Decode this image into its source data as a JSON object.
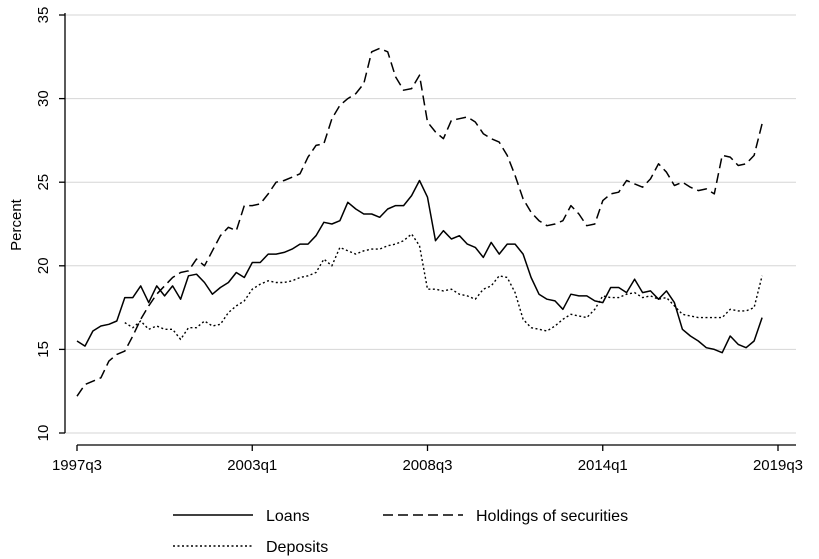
{
  "chart_data": {
    "type": "line",
    "title": "",
    "xlabel": "",
    "ylabel": "Percent",
    "xlim": [
      "1997q3",
      "2019q3"
    ],
    "ylim": [
      10,
      35
    ],
    "x_ticks": [
      "1997q3",
      "2003q1",
      "2008q3",
      "2014q1",
      "2019q3"
    ],
    "y_ticks": [
      10,
      15,
      20,
      25,
      30,
      35
    ],
    "grid": "horizontal",
    "legend_position": "bottom",
    "x": [
      "1997q3",
      "1997q4",
      "1998q1",
      "1998q2",
      "1998q3",
      "1998q4",
      "1999q1",
      "1999q2",
      "1999q3",
      "1999q4",
      "2000q1",
      "2000q2",
      "2000q3",
      "2000q4",
      "2001q1",
      "2001q2",
      "2001q3",
      "2001q4",
      "2002q1",
      "2002q2",
      "2002q3",
      "2002q4",
      "2003q1",
      "2003q2",
      "2003q3",
      "2003q4",
      "2004q1",
      "2004q2",
      "2004q3",
      "2004q4",
      "2005q1",
      "2005q2",
      "2005q3",
      "2005q4",
      "2006q1",
      "2006q2",
      "2006q3",
      "2006q4",
      "2007q1",
      "2007q2",
      "2007q3",
      "2007q4",
      "2008q1",
      "2008q2",
      "2008q3",
      "2008q4",
      "2009q1",
      "2009q2",
      "2009q3",
      "2009q4",
      "2010q1",
      "2010q2",
      "2010q3",
      "2010q4",
      "2011q1",
      "2011q2",
      "2011q3",
      "2011q4",
      "2012q1",
      "2012q2",
      "2012q3",
      "2012q4",
      "2013q1",
      "2013q2",
      "2013q3",
      "2013q4",
      "2014q1",
      "2014q2",
      "2014q3",
      "2014q4",
      "2015q1",
      "2015q2",
      "2015q3",
      "2015q4",
      "2016q1",
      "2016q2",
      "2016q3",
      "2016q4",
      "2017q1",
      "2017q2",
      "2017q3",
      "2017q4",
      "2018q1",
      "2018q2",
      "2018q3",
      "2018q4",
      "2019q1"
    ],
    "series": [
      {
        "name": "Loans",
        "style": "solid",
        "values": [
          15.5,
          15.2,
          16.1,
          16.4,
          16.5,
          16.7,
          18.1,
          18.1,
          18.8,
          17.8,
          18.8,
          18.2,
          18.8,
          18.0,
          19.4,
          19.5,
          19.0,
          18.3,
          18.7,
          19.0,
          19.6,
          19.3,
          20.2,
          20.2,
          20.7,
          20.7,
          20.8,
          21.0,
          21.3,
          21.3,
          21.8,
          22.6,
          22.5,
          22.7,
          23.8,
          23.4,
          23.1,
          23.1,
          22.9,
          23.4,
          23.6,
          23.6,
          24.2,
          25.1,
          24.1,
          21.5,
          22.1,
          21.6,
          21.8,
          21.3,
          21.1,
          20.5,
          21.4,
          20.7,
          21.3,
          21.3,
          20.7,
          19.3,
          18.3,
          18.0,
          17.9,
          17.4,
          18.3,
          18.2,
          18.2,
          17.9,
          17.8,
          18.7,
          18.7,
          18.4,
          19.2,
          18.4,
          18.5,
          18.0,
          18.5,
          17.8,
          16.2,
          15.8,
          15.5,
          15.1,
          15.0,
          14.8,
          15.8,
          15.3,
          15.1,
          15.5,
          16.9
        ]
      },
      {
        "name": "Holdings of securities",
        "style": "dashed",
        "values": [
          12.2,
          12.9,
          13.1,
          13.3,
          14.3,
          14.7,
          14.9,
          15.8,
          16.8,
          17.6,
          18.3,
          18.8,
          19.3,
          19.6,
          19.7,
          20.4,
          20.0,
          20.9,
          21.8,
          22.3,
          22.1,
          23.6,
          23.6,
          23.7,
          24.3,
          25.0,
          25.1,
          25.3,
          25.5,
          26.5,
          27.2,
          27.3,
          28.8,
          29.6,
          30.0,
          30.3,
          30.9,
          32.8,
          33.0,
          32.8,
          31.3,
          30.5,
          30.6,
          31.4,
          28.6,
          28.0,
          27.6,
          28.7,
          28.8,
          28.9,
          28.6,
          27.9,
          27.6,
          27.4,
          26.6,
          25.4,
          24.0,
          23.2,
          22.7,
          22.4,
          22.5,
          22.7,
          23.6,
          23.1,
          22.4,
          22.5,
          23.9,
          24.3,
          24.4,
          25.1,
          24.9,
          24.7,
          25.2,
          26.1,
          25.6,
          24.8,
          25.0,
          24.7,
          24.5,
          24.6,
          24.3,
          26.6,
          26.5,
          26.0,
          26.1,
          26.6,
          28.5
        ]
      },
      {
        "name": "Deposits",
        "style": "dotted",
        "values": [
          null,
          null,
          null,
          null,
          null,
          null,
          16.6,
          16.3,
          16.7,
          16.2,
          16.4,
          16.2,
          16.2,
          15.6,
          16.3,
          16.3,
          16.7,
          16.4,
          16.5,
          17.2,
          17.6,
          17.9,
          18.6,
          18.9,
          19.1,
          19.0,
          19.0,
          19.1,
          19.3,
          19.4,
          19.6,
          20.4,
          20.0,
          21.1,
          20.9,
          20.7,
          20.9,
          21.0,
          21.0,
          21.2,
          21.3,
          21.5,
          21.9,
          21.2,
          18.6,
          18.6,
          18.5,
          18.6,
          18.3,
          18.2,
          18.0,
          18.6,
          18.8,
          19.4,
          19.3,
          18.4,
          16.8,
          16.3,
          16.2,
          16.1,
          16.4,
          16.8,
          17.1,
          17.0,
          16.9,
          17.4,
          18.2,
          18.1,
          18.1,
          18.3,
          18.4,
          18.1,
          18.2,
          18.0,
          18.1,
          17.6,
          17.1,
          17.0,
          16.9,
          16.9,
          16.9,
          16.9,
          17.4,
          17.3,
          17.3,
          17.5,
          19.4
        ]
      }
    ]
  }
}
